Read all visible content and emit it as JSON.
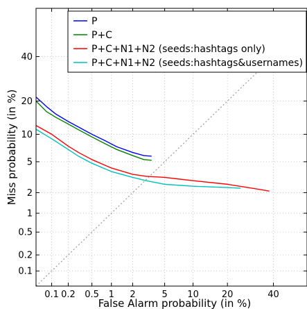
{
  "chart_data": {
    "type": "line",
    "title": "",
    "xlabel": "False Alarm probability (in %)",
    "ylabel": "Miss probability (in %)",
    "x_scale": "normal-deviate",
    "y_scale": "normal-deviate",
    "xlim": [
      0.05,
      57
    ],
    "ylim": [
      0.05,
      65
    ],
    "x_ticks": [
      {
        "value": 0.1,
        "label": "0.1"
      },
      {
        "value": 0.2,
        "label": "0.2"
      },
      {
        "value": 0.5,
        "label": "0.5"
      },
      {
        "value": 1,
        "label": "1"
      },
      {
        "value": 2,
        "label": "2"
      },
      {
        "value": 5,
        "label": "5"
      },
      {
        "value": 10,
        "label": "10"
      },
      {
        "value": 20,
        "label": "20"
      },
      {
        "value": 40,
        "label": "40"
      }
    ],
    "y_ticks": [
      {
        "value": 0.1,
        "label": "0.1"
      },
      {
        "value": 0.2,
        "label": "0.2"
      },
      {
        "value": 0.5,
        "label": "0.5"
      },
      {
        "value": 1,
        "label": "1"
      },
      {
        "value": 2,
        "label": "2"
      },
      {
        "value": 5,
        "label": "5"
      },
      {
        "value": 10,
        "label": "10"
      },
      {
        "value": 20,
        "label": "20"
      },
      {
        "value": 40,
        "label": "40"
      }
    ],
    "grid": true,
    "legend_position": "top-right",
    "series": [
      {
        "name": "P",
        "color": "#0000ff",
        "points": [
          [
            0.05,
            21.5
          ],
          [
            0.08,
            18
          ],
          [
            0.12,
            15.5
          ],
          [
            0.2,
            13.3
          ],
          [
            0.3,
            11.8
          ],
          [
            0.5,
            10
          ],
          [
            0.8,
            8.6
          ],
          [
            1.2,
            7.4
          ],
          [
            2,
            6.4
          ],
          [
            2.8,
            5.9
          ],
          [
            3.5,
            5.8
          ]
        ]
      },
      {
        "name": "P+C",
        "color": "#008000",
        "points": [
          [
            0.05,
            20
          ],
          [
            0.08,
            16.3
          ],
          [
            0.12,
            14.5
          ],
          [
            0.2,
            12.6
          ],
          [
            0.3,
            11.1
          ],
          [
            0.5,
            9.4
          ],
          [
            0.8,
            8
          ],
          [
            1.2,
            6.9
          ],
          [
            2,
            5.9
          ],
          [
            2.8,
            5.3
          ],
          [
            3.5,
            5.2
          ]
        ]
      },
      {
        "name": "P+C+N1+N2 (seeds:hashtags only)",
        "color": "#ff0000",
        "points": [
          [
            0.05,
            12.2
          ],
          [
            0.1,
            10
          ],
          [
            0.2,
            7.5
          ],
          [
            0.3,
            6.4
          ],
          [
            0.5,
            5.3
          ],
          [
            1,
            4.2
          ],
          [
            2,
            3.5
          ],
          [
            3,
            3.3
          ],
          [
            5,
            3.2
          ],
          [
            10,
            2.9
          ],
          [
            20,
            2.6
          ],
          [
            30,
            2.3
          ],
          [
            38,
            2.1
          ]
        ]
      },
      {
        "name": "P+C+N1+N2 (seeds:hashtags&usernames)",
        "color": "#00bfbf",
        "points": [
          [
            0.05,
            11.2
          ],
          [
            0.1,
            9
          ],
          [
            0.2,
            6.9
          ],
          [
            0.3,
            5.8
          ],
          [
            0.5,
            4.8
          ],
          [
            1,
            3.8
          ],
          [
            2,
            3.2
          ],
          [
            3,
            2.9
          ],
          [
            5,
            2.6
          ],
          [
            10,
            2.45
          ],
          [
            20,
            2.35
          ],
          [
            25,
            2.3
          ]
        ]
      }
    ],
    "reference_line": {
      "style": "dotted",
      "color": "#999999",
      "from": [
        0.05,
        0.05
      ],
      "to": [
        57,
        57
      ]
    }
  }
}
